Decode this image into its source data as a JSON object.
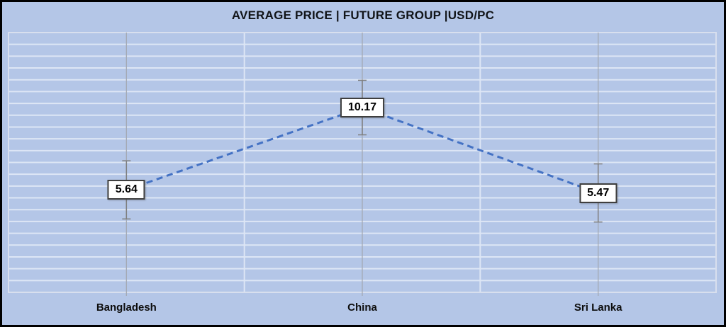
{
  "chart_data": {
    "type": "line",
    "title": "AVERAGE PRICE | FUTURE GROUP |USD/PC",
    "categories": [
      "Bangladesh",
      "China",
      "Sri Lanka"
    ],
    "series": [
      {
        "name": "Average Price USD/PC",
        "values": [
          5.64,
          10.17,
          5.47
        ],
        "labels": [
          "5.64",
          "10.17",
          "5.47"
        ],
        "error": [
          1.6,
          1.5,
          1.6
        ]
      }
    ],
    "xlabel": "",
    "ylabel": "",
    "ylim": [
      0,
      14.3
    ],
    "grid": true,
    "gridline_rows": 22,
    "line_style": "dashed",
    "legend": "none",
    "data_labels": "boxed"
  },
  "colors": {
    "background": "#b4c6e7",
    "plot_border": "#d8dfee",
    "gridline": "#dde6f5",
    "category_center_line": "#a3a9b4",
    "error_bar": "#7f7f7f",
    "series_line": "#4472c4",
    "label_box_border": "#3f3f3f",
    "label_box_fill": "#ffffff",
    "title_text": "#111418",
    "frame_border": "#000000"
  }
}
